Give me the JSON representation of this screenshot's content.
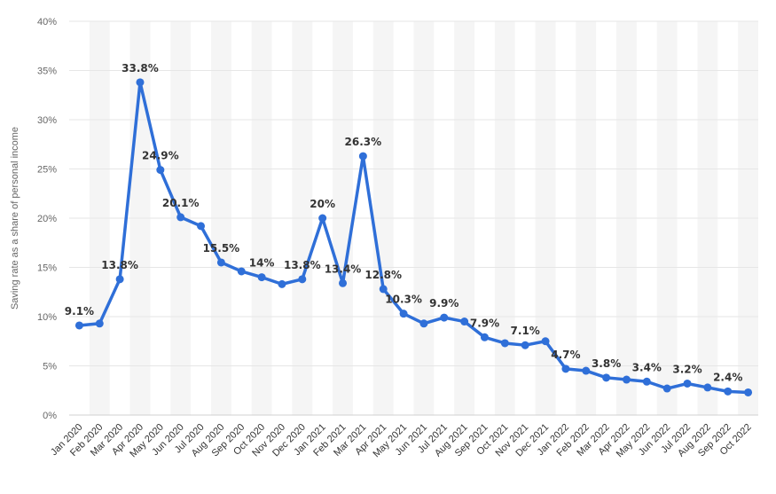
{
  "chart_data": {
    "type": "line",
    "title": "",
    "xlabel": "",
    "ylabel": "Saving rate as a share of personal income",
    "ylim": [
      0,
      40
    ],
    "yticks": [
      "0%",
      "5%",
      "10%",
      "15%",
      "20%",
      "25%",
      "30%",
      "35%",
      "40%"
    ],
    "grid": "horizontal",
    "categories": [
      "Jan 2020",
      "Feb 2020",
      "Mar 2020",
      "Apr 2020",
      "May 2020",
      "Jun 2020",
      "Jul 2020",
      "Aug 2020",
      "Sep 2020",
      "Oct 2020",
      "Nov 2020",
      "Dec 2020",
      "Jan 2021",
      "Feb 2021",
      "Mar 2021",
      "Apr 2021",
      "May 2021",
      "Jun 2021",
      "Jul 2021",
      "Aug 2021",
      "Sep 2021",
      "Oct 2021",
      "Nov 2021",
      "Dec 2021",
      "Jan 2022",
      "Feb 2022",
      "Mar 2022",
      "Apr 2022",
      "May 2022",
      "Jun 2022",
      "Jul 2022",
      "Aug 2022",
      "Sep 2022",
      "Oct 2022"
    ],
    "series": [
      {
        "values": [
          9.1,
          9.3,
          13.8,
          33.8,
          24.9,
          20.1,
          19.2,
          15.5,
          14.6,
          14.0,
          13.3,
          13.8,
          20.0,
          13.4,
          26.3,
          12.8,
          10.3,
          9.3,
          9.9,
          9.5,
          7.9,
          7.3,
          7.1,
          7.5,
          4.7,
          4.5,
          3.8,
          3.6,
          3.4,
          2.7,
          3.2,
          2.8,
          2.4,
          2.3
        ]
      }
    ],
    "data_labels": [
      {
        "index": 0,
        "text": "9.1%"
      },
      {
        "index": 2,
        "text": "13.8%"
      },
      {
        "index": 3,
        "text": "33.8%"
      },
      {
        "index": 4,
        "text": "24.9%"
      },
      {
        "index": 5,
        "text": "20.1%"
      },
      {
        "index": 7,
        "text": "15.5%"
      },
      {
        "index": 9,
        "text": "14%"
      },
      {
        "index": 11,
        "text": "13.8%"
      },
      {
        "index": 12,
        "text": "20%"
      },
      {
        "index": 13,
        "text": "13.4%"
      },
      {
        "index": 14,
        "text": "26.3%"
      },
      {
        "index": 15,
        "text": "12.8%"
      },
      {
        "index": 16,
        "text": "10.3%"
      },
      {
        "index": 18,
        "text": "9.9%"
      },
      {
        "index": 20,
        "text": "7.9%"
      },
      {
        "index": 22,
        "text": "7.1%"
      },
      {
        "index": 24,
        "text": "4.7%"
      },
      {
        "index": 26,
        "text": "3.8%"
      },
      {
        "index": 28,
        "text": "3.4%"
      },
      {
        "index": 30,
        "text": "3.2%"
      },
      {
        "index": 32,
        "text": "2.4%"
      }
    ],
    "colors": {
      "line": "#2f6fd8",
      "band": "#f5f5f5",
      "grid": "#e6e6e6",
      "axis": "#d0d0d0"
    }
  }
}
